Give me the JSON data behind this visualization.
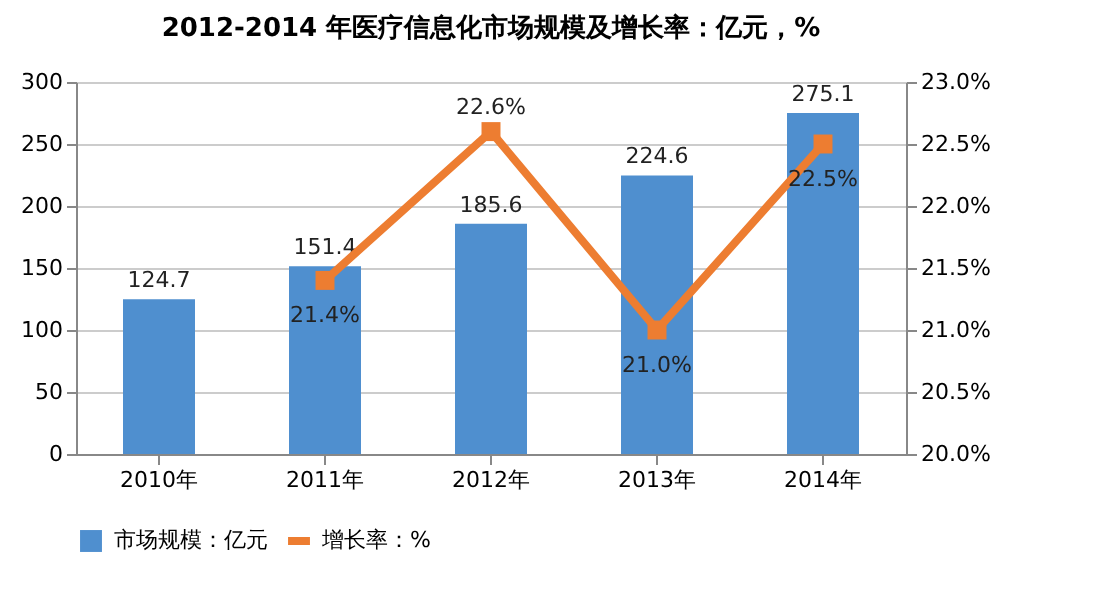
{
  "chart_data": {
    "type": "bar",
    "title": "2012-2014 年医疗信息化市场规模及增长率：亿元，%",
    "categories": [
      "2010年",
      "2011年",
      "2012年",
      "2013年",
      "2014年"
    ],
    "series": [
      {
        "name": "市场规模：亿元",
        "color": "#4f8fcf",
        "values": [
          124.7,
          151.4,
          185.6,
          224.6,
          275.1
        ],
        "value_labels": [
          "124.7",
          "151.4",
          "185.6",
          "224.6",
          "275.1"
        ]
      },
      {
        "name": "增长率：%",
        "type": "line",
        "axis": "y2",
        "color": "#ed7d31",
        "values": [
          null,
          21.4,
          22.6,
          21.0,
          22.5
        ],
        "value_labels": [
          null,
          "21.4%",
          "22.6%",
          "21.0%",
          "22.5%"
        ]
      }
    ],
    "ylim": [
      0,
      300
    ],
    "yticks": [
      0,
      50,
      100,
      150,
      200,
      250,
      300
    ],
    "y2lim": [
      20,
      23
    ],
    "y2ticks": [
      {
        "value": 20,
        "label": "20.0%"
      },
      {
        "value": 20.5,
        "label": "20.5%"
      },
      {
        "value": 21,
        "label": "21.0%"
      },
      {
        "value": 21.5,
        "label": "21.5%"
      },
      {
        "value": 22,
        "label": "22.0%"
      },
      {
        "value": 22.5,
        "label": "22.5%"
      },
      {
        "value": 23,
        "label": "23.0%"
      }
    ],
    "grid": "y",
    "legend": "bottom",
    "marker": "square",
    "line_style": "solid"
  }
}
